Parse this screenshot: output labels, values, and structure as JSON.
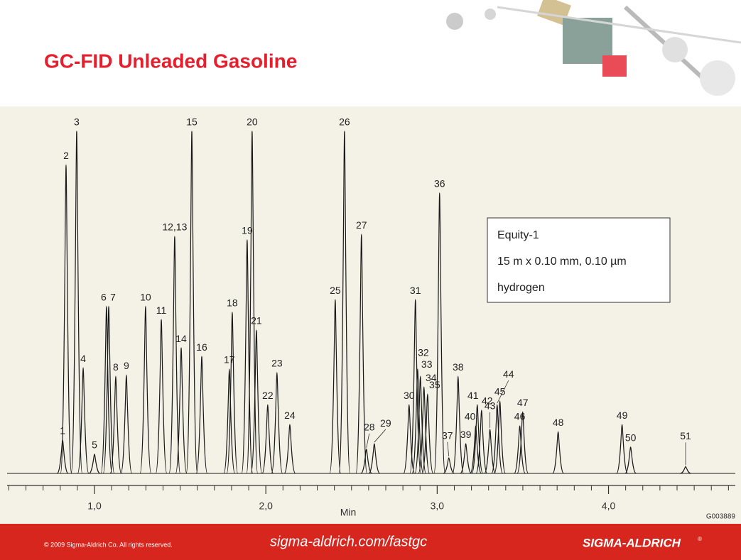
{
  "chart_data": {
    "type": "chromatogram",
    "title": "GC-FID Unleaded Gasoline",
    "peak_labels": [
      "1",
      "2",
      "3",
      "4",
      "5",
      "6",
      "7",
      "8",
      "9",
      "10",
      "11",
      "12,13",
      "14",
      "15",
      "16",
      "17",
      "18",
      "19",
      "20",
      "21",
      "22",
      "23",
      "24",
      "25",
      "26",
      "27",
      "28",
      "29",
      "30",
      "31",
      "32",
      "33",
      "34",
      "35",
      "36",
      "37",
      "38",
      "39",
      "40",
      "41",
      "42",
      "43",
      "44",
      "45",
      "46",
      "47",
      "48",
      "49",
      "50",
      "51"
    ],
    "x": [
      0.814,
      0.834,
      0.896,
      0.934,
      1.0,
      1.07,
      1.083,
      1.124,
      1.186,
      1.298,
      1.39,
      1.468,
      1.506,
      1.568,
      1.626,
      1.787,
      1.804,
      1.891,
      1.92,
      1.945,
      2.011,
      2.065,
      2.14,
      2.405,
      2.459,
      2.558,
      2.587,
      2.633,
      2.836,
      2.873,
      2.886,
      2.902,
      2.923,
      2.944,
      3.014,
      3.068,
      3.122,
      3.167,
      3.225,
      3.234,
      3.259,
      3.308,
      3.35,
      3.366,
      3.482,
      3.499,
      3.706,
      4.079,
      4.129,
      4.45
    ],
    "values": [
      9.8,
      90.2,
      100,
      30.9,
      5.6,
      48.8,
      48.8,
      28.4,
      28.8,
      48.8,
      45,
      69.3,
      36.7,
      100,
      34.2,
      30.5,
      47.1,
      68.3,
      100,
      41.9,
      20.1,
      29.5,
      14.3,
      50.8,
      100,
      69.9,
      7.1,
      8.7,
      20.1,
      50.8,
      30.5,
      28.4,
      25.3,
      23.2,
      82,
      4.6,
      28.4,
      8.7,
      13.9,
      20.1,
      18.5,
      12.9,
      20.1,
      21.2,
      13.9,
      18,
      12.2,
      14.3,
      7.7,
      2
    ],
    "color": "#1a1a1a",
    "xlabel": "Min",
    "xlim": [
      0.49,
      4.74
    ],
    "xticks": [
      {
        "value": 1,
        "label": "1,0"
      },
      {
        "value": 2,
        "label": "2,0"
      },
      {
        "value": 3,
        "label": "3,0"
      },
      {
        "value": 4,
        "label": "4,0"
      }
    ],
    "xminorticks": [
      0.5,
      0.6,
      0.7,
      0.8,
      0.9,
      1.1,
      1.2,
      1.3,
      1.4,
      1.5,
      1.6,
      1.7,
      1.8,
      1.9,
      2.1,
      2.2,
      2.3,
      2.4,
      2.5,
      2.6,
      2.7,
      2.8,
      2.9,
      3.1,
      3.2,
      3.3,
      3.4,
      3.5,
      3.6,
      3.7,
      3.8,
      3.9,
      4.1,
      4.2,
      4.3,
      4.4,
      4.5,
      4.6,
      4.7
    ],
    "ylim": [
      0,
      100
    ],
    "annotation": [
      "Equity-1",
      "15 m x 0.10 mm, 0.10 µm",
      "hydrogen"
    ],
    "code": "G003889"
  },
  "footer": {
    "copyright": "© 2009 Sigma-Aldrich Co. All rights reserved.",
    "url": "sigma-aldrich.com/fastgc",
    "brand": "SIGMA-ALDRICH",
    "mark": "®"
  }
}
